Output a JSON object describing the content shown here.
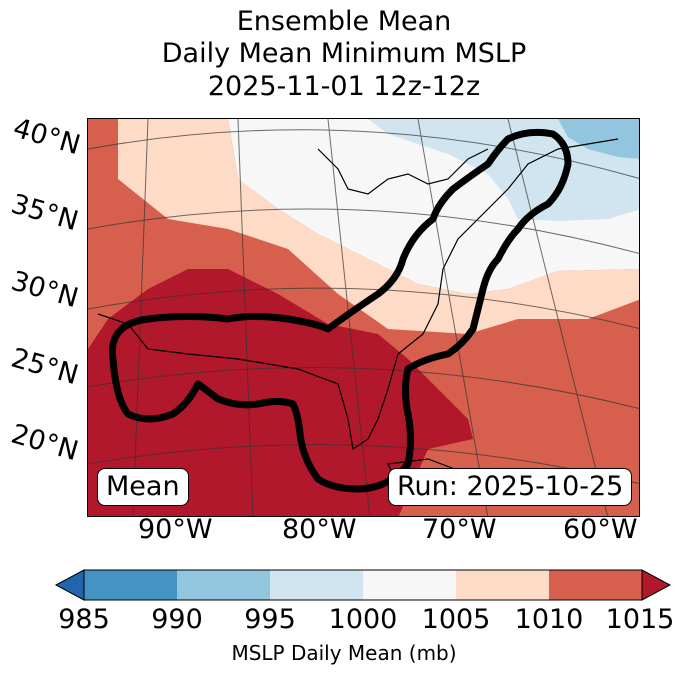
{
  "title": {
    "line1": "Ensemble Mean",
    "line2": "Daily Mean Minimum MSLP",
    "line3": "2025-11-01 12z-12z"
  },
  "map": {
    "lat_labels": [
      "40°N",
      "35°N",
      "30°N",
      "25°N",
      "20°N"
    ],
    "lon_labels": [
      "90°W",
      "80°W",
      "70°W",
      "60°W"
    ],
    "mean_label": "Mean",
    "run_label": "Run: 2025-10-25",
    "field": "MSLP Daily Mean",
    "contour": "Ensemble mean low-pressure track outline"
  },
  "colorbar": {
    "label": "MSLP Daily Mean (mb)",
    "ticks": [
      "985",
      "990",
      "995",
      "1000",
      "1005",
      "1010",
      "1015"
    ],
    "colors": {
      "under": "#2166ac",
      "985_990": "#4393c3",
      "990_995": "#92c5de",
      "995_1000": "#d1e5f0",
      "1000_1005": "#f7f7f7",
      "1005_1010": "#fddbc7",
      "1010_1015": "#d6604d",
      "over": "#b2182b"
    }
  }
}
